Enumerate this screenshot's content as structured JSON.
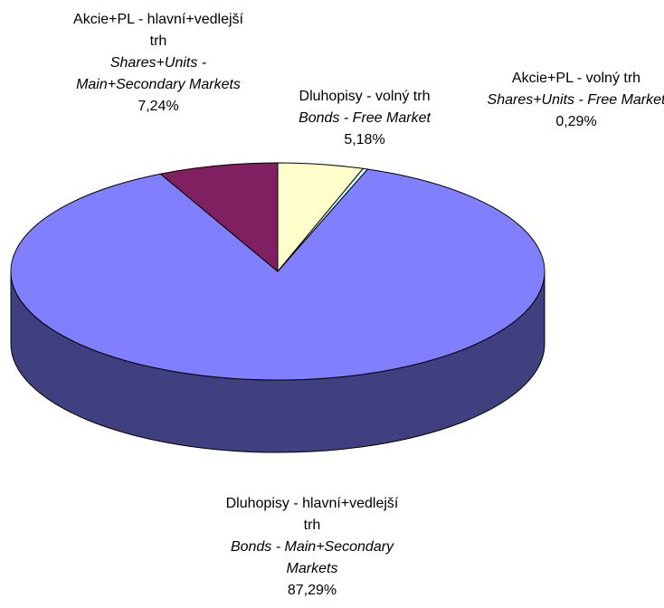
{
  "chart_data": {
    "type": "pie3d",
    "categories": [
      "Dluhopisy - volný trh",
      "Akcie+PL - volný trh",
      "Dluhopisy - hlavní+vedlejší trh",
      "Akcie+PL - hlavní+vedlejší trh"
    ],
    "categories_en": [
      "Bonds - Free Market",
      "Shares+Units - Free Market",
      "Bonds - Main+Secondary Markets",
      "Shares+Units - Main+Secondary Markets"
    ],
    "values": [
      5.18,
      0.29,
      87.29,
      7.24
    ],
    "value_labels": [
      "5,18%",
      "0,29%",
      "87,29%",
      "7,24%"
    ],
    "colors": [
      "#ffffcc",
      "#ccffff",
      "#8080ff",
      "#802060"
    ]
  }
}
